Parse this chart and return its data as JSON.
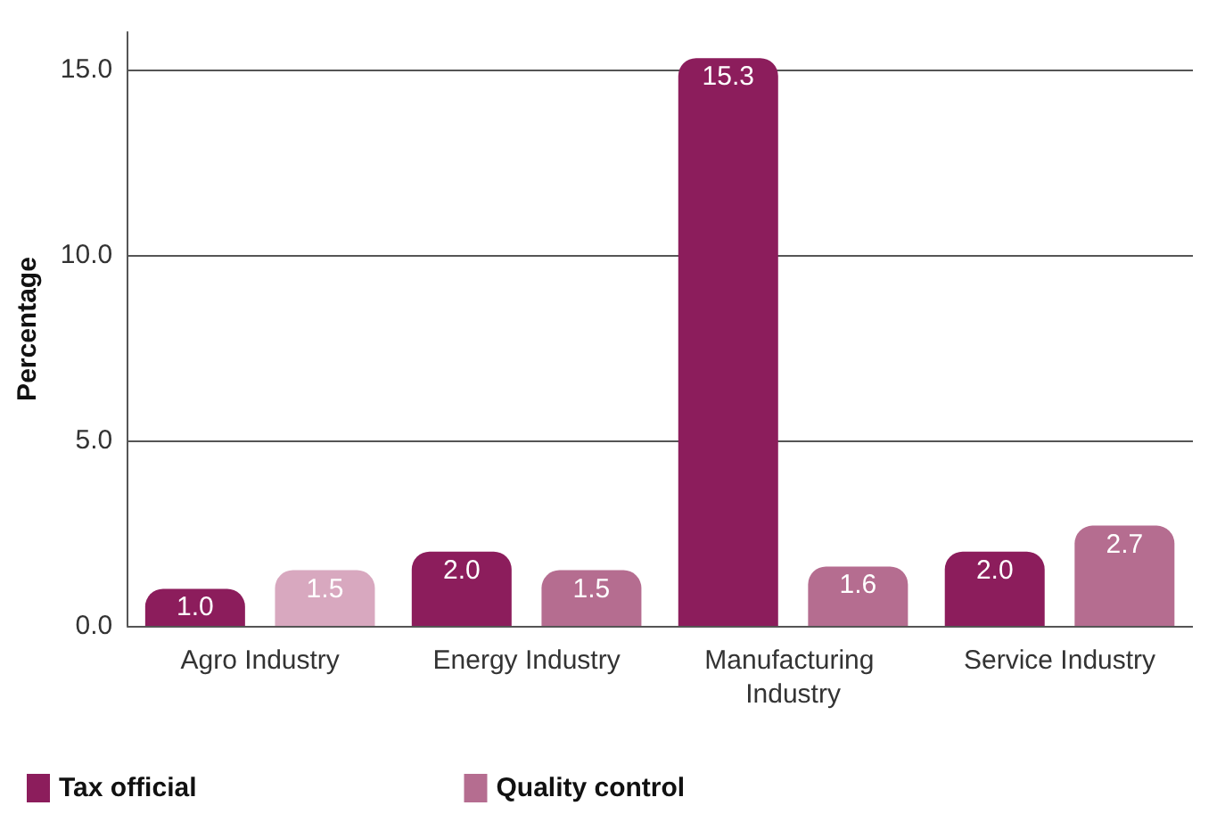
{
  "chart_data": {
    "type": "bar",
    "ylabel": "Percentage",
    "categories": [
      "Agro Industry",
      "Energy Industry",
      "Manufacturing Industry",
      "Service Industry"
    ],
    "series": [
      {
        "name": "Tax official",
        "color": "#8c1d5c",
        "values": [
          1.0,
          2.0,
          15.3,
          2.0
        ],
        "value_labels": [
          "1.0",
          "2.0",
          "15.3",
          "2.0"
        ]
      },
      {
        "name": "Quality control",
        "color": "#b56d90",
        "colors": [
          "#d8a8bf",
          "#b56d90",
          "#b56d90",
          "#b56d90"
        ],
        "values": [
          1.5,
          1.5,
          1.6,
          2.7
        ],
        "value_labels": [
          "1.5",
          "1.5",
          "1.6",
          "2.7"
        ]
      }
    ],
    "ylim": [
      0,
      16
    ],
    "yticks": [
      {
        "value": 0,
        "label": "0.0"
      },
      {
        "value": 5,
        "label": "5.0"
      },
      {
        "value": 10,
        "label": "10.0"
      },
      {
        "value": 15,
        "label": "15.0"
      }
    ],
    "grid": "y",
    "legend": "bottom left"
  }
}
